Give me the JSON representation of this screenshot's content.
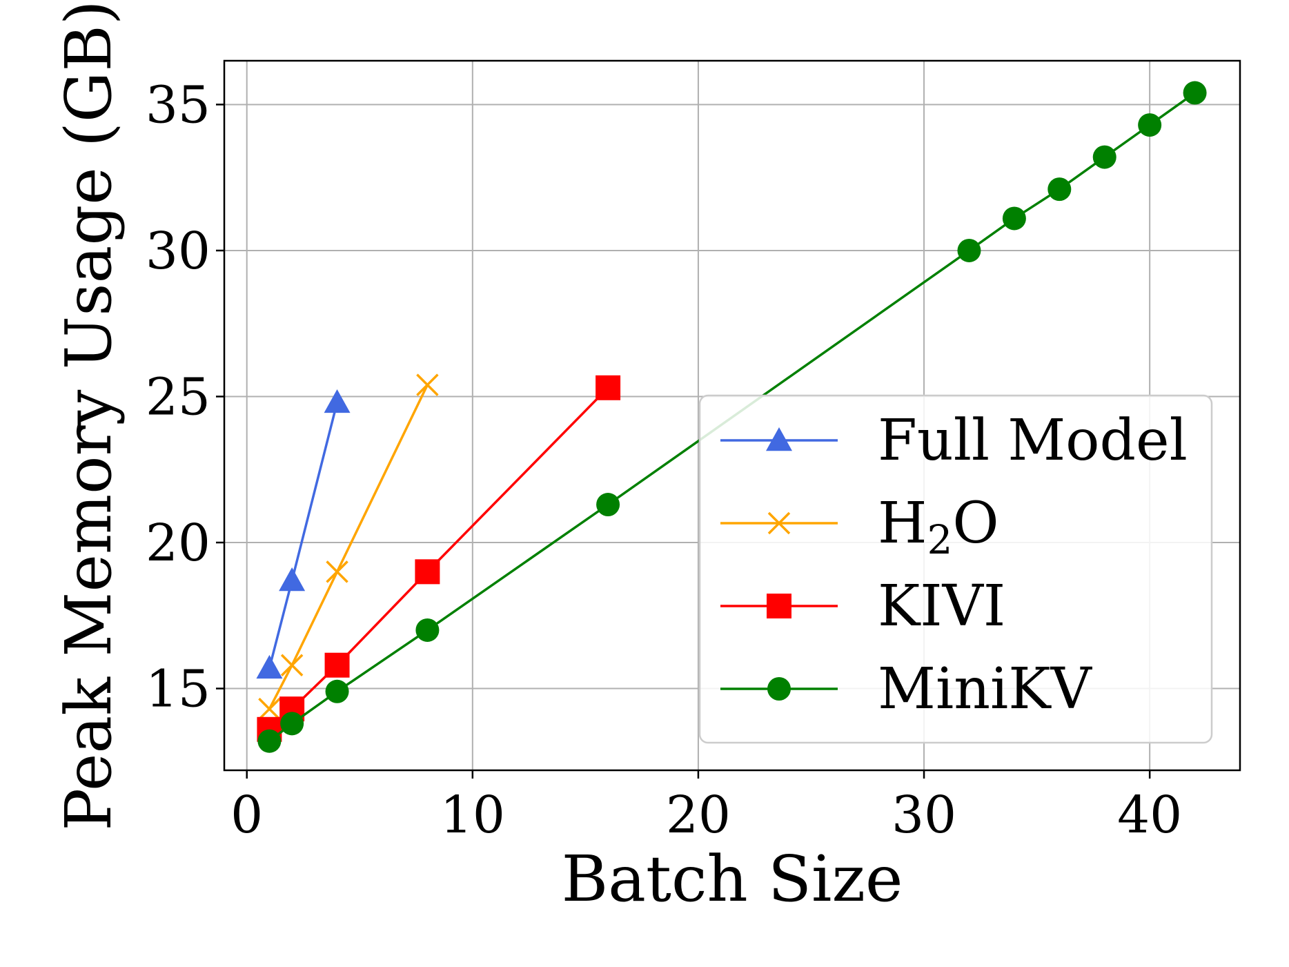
{
  "chart_data": {
    "type": "line",
    "title": "",
    "xlabel": "Batch Size",
    "ylabel": "Peak Memory Usage (GB)",
    "xlim": [
      -1,
      44
    ],
    "ylim": [
      12.2,
      36.5
    ],
    "xticks": [
      0,
      10,
      20,
      30,
      40
    ],
    "yticks": [
      15,
      20,
      25,
      30,
      35
    ],
    "grid": true,
    "legend_position": "center-right",
    "series": [
      {
        "name": "Full Model",
        "legend_main": "Full Model",
        "legend_sub": "",
        "legend_tail": "",
        "color": "#4169e1",
        "marker": "triangle",
        "x": [
          1,
          2,
          4
        ],
        "y": [
          15.7,
          18.7,
          24.8
        ]
      },
      {
        "name": "H2O",
        "legend_main": "H",
        "legend_sub": "2",
        "legend_tail": "O",
        "color": "#ffa500",
        "marker": "x",
        "x": [
          1,
          2,
          4,
          8
        ],
        "y": [
          14.3,
          15.8,
          19.0,
          25.4
        ]
      },
      {
        "name": "KIVI",
        "legend_main": "KIVI",
        "legend_sub": "",
        "legend_tail": "",
        "color": "#ff0000",
        "marker": "square",
        "x": [
          1,
          2,
          4,
          8,
          16
        ],
        "y": [
          13.6,
          14.3,
          15.8,
          19.0,
          25.3
        ]
      },
      {
        "name": "MiniKV",
        "legend_main": "MiniKV",
        "legend_sub": "",
        "legend_tail": "",
        "color": "#008000",
        "marker": "circle",
        "x": [
          1,
          2,
          4,
          8,
          16,
          32,
          34,
          36,
          38,
          40,
          42
        ],
        "y": [
          13.2,
          13.8,
          14.9,
          17.0,
          21.3,
          30.0,
          31.1,
          32.1,
          33.2,
          34.3,
          35.4
        ]
      }
    ]
  }
}
